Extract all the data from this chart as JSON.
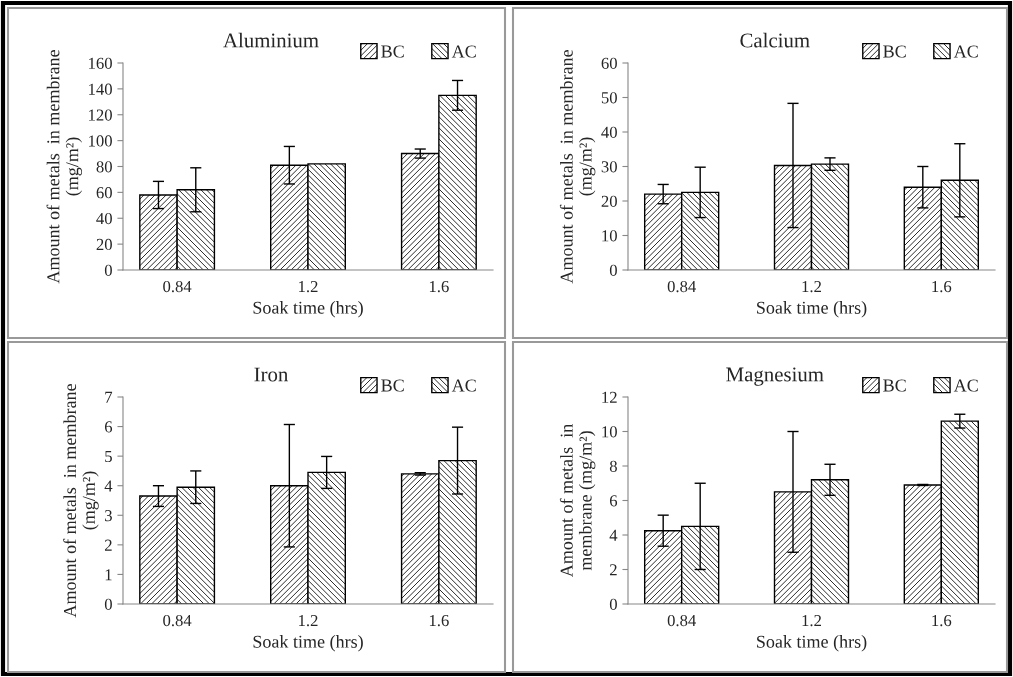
{
  "chart_data": [
    {
      "type": "bar",
      "title": "Aluminium",
      "xlabel": "Soak time (hrs)",
      "ylabel": "Amount of metals  in membrane\n(mg/m²)",
      "categories": [
        "0.84",
        "1.2",
        "1.6"
      ],
      "ylim": [
        0,
        160
      ],
      "yticks": [
        0,
        20,
        40,
        60,
        80,
        100,
        120,
        140,
        160
      ],
      "legend": "top right",
      "grid": false,
      "series": [
        {
          "name": "BC",
          "color": "#000000",
          "values": [
            58,
            81,
            90
          ],
          "errors": [
            10.5,
            14.5,
            3.5
          ]
        },
        {
          "name": "AC",
          "color": "#000000",
          "values": [
            62,
            82,
            135
          ],
          "errors": [
            17,
            null,
            11.5
          ]
        }
      ]
    },
    {
      "type": "bar",
      "title": "Calcium",
      "xlabel": "Soak time (hrs)",
      "ylabel": "Amount of metals  in membrane\n(mg/m²)",
      "categories": [
        "0.84",
        "1.2",
        "1.6"
      ],
      "ylim": [
        0,
        60
      ],
      "yticks": [
        0,
        10,
        20,
        30,
        40,
        50,
        60
      ],
      "legend": "top right",
      "grid": false,
      "series": [
        {
          "name": "BC",
          "color": "#000000",
          "values": [
            22,
            30.3,
            24
          ],
          "errors": [
            2.8,
            18,
            6
          ]
        },
        {
          "name": "AC",
          "color": "#000000",
          "values": [
            22.5,
            30.7,
            26
          ],
          "errors": [
            7.3,
            1.8,
            10.6
          ]
        }
      ]
    },
    {
      "type": "bar",
      "title": "Iron",
      "xlabel": "Soak time (hrs)",
      "ylabel": "Amount of metals  in membrane\n(mg/m²)",
      "categories": [
        "0.84",
        "1.2",
        "1.6"
      ],
      "ylim": [
        0,
        7
      ],
      "yticks": [
        0,
        1,
        2,
        3,
        4,
        5,
        6,
        7
      ],
      "legend": "top right",
      "grid": false,
      "series": [
        {
          "name": "BC",
          "color": "#000000",
          "values": [
            3.65,
            4.0,
            4.4
          ],
          "errors": [
            0.35,
            2.07,
            0.04
          ]
        },
        {
          "name": "AC",
          "color": "#000000",
          "values": [
            3.95,
            4.45,
            4.85
          ],
          "errors": [
            0.55,
            0.54,
            1.13
          ]
        }
      ]
    },
    {
      "type": "bar",
      "title": "Magnesium",
      "xlabel": "Soak time (hrs)",
      "ylabel": "Amount of metals  in\nmembrane (mg/m²)",
      "categories": [
        "0.84",
        "1.2",
        "1.6"
      ],
      "ylim": [
        0,
        12
      ],
      "yticks": [
        0,
        2,
        4,
        6,
        8,
        10,
        12
      ],
      "legend": "top right",
      "grid": false,
      "series": [
        {
          "name": "BC",
          "color": "#000000",
          "values": [
            4.25,
            6.5,
            6.9
          ],
          "errors": [
            0.9,
            3.5,
            0.03
          ]
        },
        {
          "name": "AC",
          "color": "#000000",
          "values": [
            4.5,
            7.2,
            10.6
          ],
          "errors": [
            2.5,
            0.9,
            0.4
          ]
        }
      ]
    }
  ]
}
